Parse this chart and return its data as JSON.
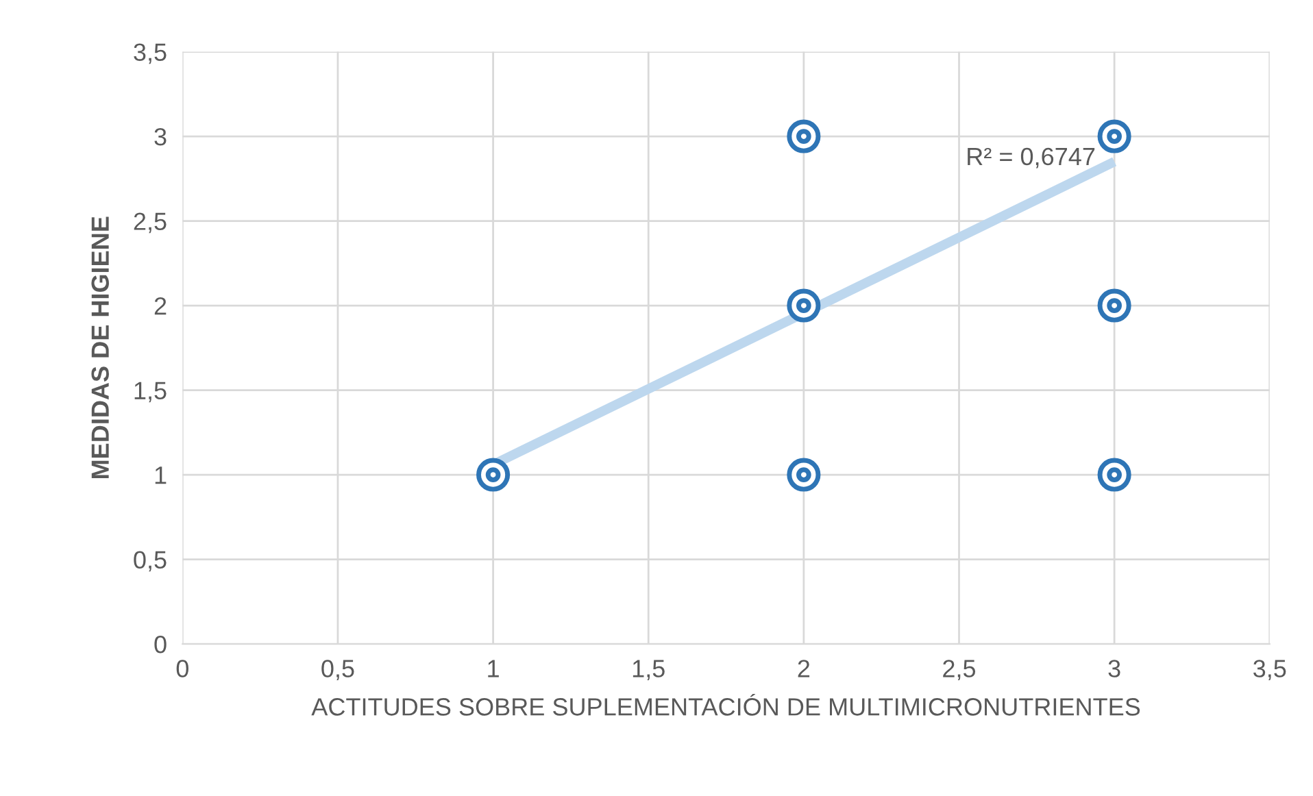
{
  "chart_data": {
    "type": "scatter",
    "xlabel": "ACTITUDES SOBRE SUPLEMENTACIÓN DE MULTIMICRONUTRIENTES",
    "ylabel": "MEDIDAS DE HIGIENE",
    "series": [
      {
        "color": "#2e75b6",
        "x": [
          1,
          2,
          2,
          2,
          3,
          3,
          3
        ],
        "values": [
          1,
          3,
          2,
          1,
          3,
          2,
          1
        ],
        "marker": "circle"
      },
      {
        "type": "line",
        "color": "#bdd7ee",
        "x": [
          1,
          3
        ],
        "values": [
          1.06,
          2.85
        ],
        "marker": "none"
      }
    ],
    "annotations": [
      "R² = 0,6747"
    ],
    "xlim": [
      0,
      3.5
    ],
    "ylim": [
      0,
      3.5
    ],
    "xticks": [
      0,
      {
        "value": 0.5,
        "label": "0,5"
      },
      1,
      {
        "value": 1.5,
        "label": "1,5"
      },
      2,
      {
        "value": 2.5,
        "label": "2,5"
      },
      3,
      {
        "value": 3.5,
        "label": "3,5"
      }
    ],
    "yticks": [
      0,
      {
        "value": 0.5,
        "label": "0,5"
      },
      1,
      {
        "value": 1.5,
        "label": "1,5"
      },
      2,
      {
        "value": 2.5,
        "label": "2,5"
      },
      3,
      {
        "value": 3.5,
        "label": "3,5"
      }
    ],
    "grid": true
  }
}
